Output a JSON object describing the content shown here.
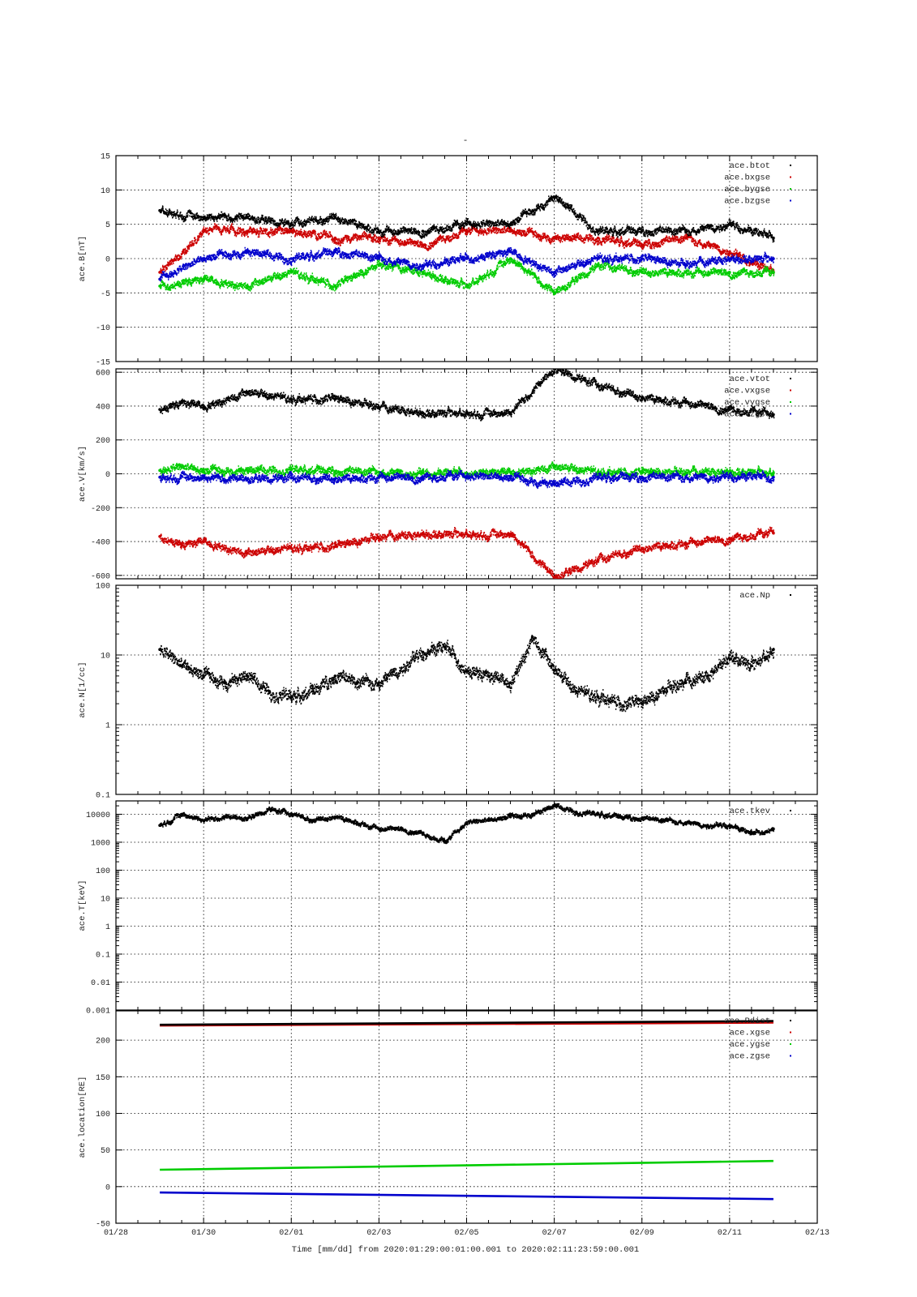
{
  "figure": {
    "title": "-",
    "xlabel": "Time [mm/dd]  from 2020:01:29:00:01:00.001  to  2020:02:11:23:59:00.001",
    "x_ticks": [
      "01/28",
      "01/30",
      "02/01",
      "02/03",
      "02/05",
      "02/07",
      "02/09",
      "02/11",
      "02/13"
    ],
    "x_range": [
      "2020-01-28",
      "2020-02-13"
    ],
    "grid": true
  },
  "chart_data": [
    {
      "type": "scatter",
      "ylabel": "ace.B[nT]",
      "ylim": [
        -15,
        15
      ],
      "scale": "linear",
      "y_ticks": [
        "15",
        "10",
        "5",
        "0",
        "-5",
        "-10",
        "-15"
      ],
      "legend_position": "top-right",
      "series": [
        {
          "name": "ace.btot",
          "color": "#000000",
          "x": [
            "01/29",
            "01/30",
            "01/31",
            "02/01",
            "02/02",
            "02/03",
            "02/04",
            "02/05",
            "02/06",
            "02/07",
            "02/08",
            "02/09",
            "02/10",
            "02/11",
            "02/12"
          ],
          "values": [
            7,
            6,
            6,
            5,
            6,
            4,
            4,
            5,
            5,
            9,
            4,
            4,
            4,
            5,
            3
          ]
        },
        {
          "name": "ace.bxgse",
          "color": "#cc0000",
          "x": [
            "01/29",
            "01/30",
            "01/31",
            "02/01",
            "02/02",
            "02/03",
            "02/04",
            "02/05",
            "02/06",
            "02/07",
            "02/08",
            "02/09",
            "02/10",
            "02/11",
            "02/12"
          ],
          "values": [
            -2,
            4,
            4,
            4,
            3,
            3,
            2,
            4,
            4,
            3,
            3,
            2,
            3,
            1,
            -2
          ]
        },
        {
          "name": "ace.bygse",
          "color": "#00cc00",
          "x": [
            "01/29",
            "01/30",
            "01/31",
            "02/01",
            "02/02",
            "02/03",
            "02/04",
            "02/05",
            "02/06",
            "02/07",
            "02/08",
            "02/09",
            "02/10",
            "02/11",
            "02/12"
          ],
          "values": [
            -4,
            -3,
            -4,
            -2,
            -4,
            -1,
            -2,
            -4,
            0,
            -5,
            -1,
            -2,
            -2,
            -2,
            -2
          ]
        },
        {
          "name": "ace.bzgse",
          "color": "#0000cc",
          "x": [
            "01/29",
            "01/30",
            "01/31",
            "02/01",
            "02/02",
            "02/03",
            "02/04",
            "02/05",
            "02/06",
            "02/07",
            "02/08",
            "02/09",
            "02/10",
            "02/11",
            "02/12"
          ],
          "values": [
            -3,
            0,
            1,
            0,
            1,
            0,
            -1,
            0,
            1,
            -2,
            0,
            0,
            -1,
            0,
            0
          ]
        }
      ]
    },
    {
      "type": "scatter",
      "ylabel": "ace.V[km/s]",
      "ylim": [
        -620,
        620
      ],
      "scale": "linear",
      "y_ticks": [
        "600",
        "400",
        "200",
        "0",
        "-200",
        "-400",
        "-600"
      ],
      "legend_position": "top-right",
      "series": [
        {
          "name": "ace.vtot",
          "color": "#000000",
          "x": [
            "01/29",
            "01/29 12h",
            "01/30",
            "01/31",
            "02/01",
            "02/02",
            "02/03",
            "02/04",
            "02/05",
            "02/06",
            "02/07",
            "02/08",
            "02/09",
            "02/10",
            "02/11",
            "02/12"
          ],
          "values": [
            380,
            420,
            400,
            480,
            440,
            440,
            390,
            360,
            360,
            360,
            620,
            520,
            450,
            420,
            380,
            350
          ]
        },
        {
          "name": "ace.vxgse",
          "color": "#cc0000",
          "x": [
            "01/29",
            "01/29 12h",
            "01/30",
            "01/31",
            "02/01",
            "02/02",
            "02/03",
            "02/04",
            "02/05",
            "02/06",
            "02/07",
            "02/08",
            "02/09",
            "02/10",
            "02/11",
            "02/12"
          ],
          "values": [
            -370,
            -420,
            -400,
            -470,
            -440,
            -430,
            -380,
            -355,
            -355,
            -355,
            -610,
            -510,
            -440,
            -410,
            -380,
            -350
          ]
        },
        {
          "name": "ace.vygse",
          "color": "#00cc00",
          "x": [
            "01/29",
            "01/29 12h",
            "01/30",
            "01/31",
            "02/01",
            "02/02",
            "02/03",
            "02/04",
            "02/05",
            "02/06",
            "02/07",
            "02/08",
            "02/09",
            "02/10",
            "02/11",
            "02/12"
          ],
          "values": [
            20,
            40,
            15,
            20,
            25,
            15,
            10,
            5,
            5,
            10,
            40,
            10,
            5,
            5,
            15,
            5
          ]
        },
        {
          "name": "ace.vzgse",
          "color": "#0000cc",
          "x": [
            "01/29",
            "01/29 12h",
            "01/30",
            "01/31",
            "02/01",
            "02/02",
            "02/03",
            "02/04",
            "02/05",
            "02/06",
            "02/07",
            "02/08",
            "02/09",
            "02/10",
            "02/11",
            "02/12"
          ],
          "values": [
            -20,
            -15,
            -25,
            -30,
            -25,
            -30,
            -20,
            -20,
            -15,
            -25,
            -60,
            -20,
            -20,
            -20,
            -15,
            -20
          ]
        }
      ]
    },
    {
      "type": "scatter",
      "ylabel": "ace.N[1/cc]",
      "ylim": [
        0.1,
        100
      ],
      "scale": "log",
      "y_ticks": [
        "100",
        "10",
        "1",
        "0.1"
      ],
      "legend_position": "top-right",
      "series": [
        {
          "name": "ace.Np",
          "color": "#000000",
          "x": [
            "01/29",
            "01/29 12h",
            "01/30",
            "01/30 12h",
            "01/31",
            "01/31 12h",
            "02/01",
            "02/01 12h",
            "02/02",
            "02/02 12h",
            "02/03",
            "02/04",
            "02/04 12h",
            "02/05",
            "02/05 12h",
            "02/06",
            "02/06 12h",
            "02/07",
            "02/07 12h",
            "02/08",
            "02/08 12h",
            "02/09",
            "02/09 12h",
            "02/10",
            "02/10 12h",
            "02/11",
            "02/11 12h",
            "02/12"
          ],
          "values": [
            12,
            7,
            5,
            4,
            5,
            3,
            2.5,
            3,
            5,
            4,
            4,
            11,
            13,
            6,
            5,
            4,
            18,
            6,
            3,
            2.5,
            2,
            2,
            3,
            4,
            5,
            10,
            7,
            12
          ]
        }
      ]
    },
    {
      "type": "scatter",
      "ylabel": "ace.T[keV]",
      "ylim": [
        0.001,
        30000
      ],
      "scale": "log",
      "y_ticks": [
        "10000",
        "1000",
        "100",
        "10",
        "1",
        "0.1",
        "0.01",
        "0.001"
      ],
      "legend_position": "top-right",
      "series": [
        {
          "name": "ace.tkev",
          "color": "#000000",
          "x": [
            "01/29",
            "01/29 12h",
            "01/30",
            "01/30 12h",
            "01/31",
            "01/31 12h",
            "02/01",
            "02/01 12h",
            "02/02",
            "02/02 12h",
            "02/03",
            "02/03 12h",
            "02/04",
            "02/04 12h",
            "02/05",
            "02/05 12h",
            "02/06",
            "02/06 12h",
            "02/07",
            "02/07 12h",
            "02/08",
            "02/08 12h",
            "02/09",
            "02/09 12h",
            "02/10",
            "02/10 12h",
            "02/11",
            "02/11 12h",
            "02/12"
          ],
          "values": [
            4000,
            10000,
            6000,
            8000,
            7000,
            15000,
            10000,
            6000,
            8000,
            5000,
            3000,
            3000,
            2000,
            1000,
            5000,
            6000,
            8000,
            10000,
            20000,
            12000,
            10000,
            8000,
            7000,
            6000,
            5000,
            4000,
            4000,
            2000,
            3000
          ]
        }
      ]
    },
    {
      "type": "line",
      "ylabel": "ace.location[RE]",
      "ylim": [
        -50,
        240
      ],
      "scale": "linear",
      "y_ticks": [
        "200",
        "150",
        "100",
        "50",
        "0",
        "-50"
      ],
      "legend_position": "top-right",
      "series": [
        {
          "name": "ace.Rdist",
          "color": "#000000",
          "x": [
            "01/29",
            "02/12"
          ],
          "values": [
            221,
            226
          ]
        },
        {
          "name": "ace.xgse",
          "color": "#cc0000",
          "x": [
            "01/29",
            "02/12"
          ],
          "values": [
            220,
            224
          ]
        },
        {
          "name": "ace.ygse",
          "color": "#00cc00",
          "x": [
            "01/29",
            "02/12"
          ],
          "values": [
            23,
            35
          ]
        },
        {
          "name": "ace.zgse",
          "color": "#0000cc",
          "x": [
            "01/29",
            "02/12"
          ],
          "values": [
            -8,
            -17
          ]
        }
      ]
    }
  ]
}
